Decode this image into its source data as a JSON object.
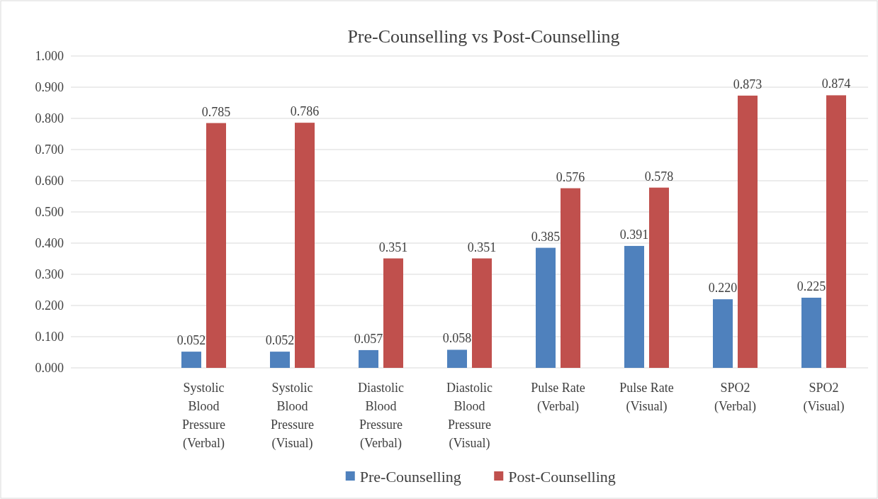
{
  "chart_data": {
    "type": "bar",
    "title": "Pre-Counselling vs Post-Counselling",
    "categories": [
      null,
      "Systolic Blood Pressure (Verbal)",
      "Systolic Blood Pressure (Visual)",
      "Diastolic Blood Pressure (Verbal)",
      "Diastolic Blood Pressure (Visual)",
      "Pulse Rate (Verbal)",
      "Pulse Rate (Visual)",
      "SPO2 (Verbal)",
      "SPO2 (Visual)"
    ],
    "series": [
      {
        "name": "Pre-Counselling",
        "color": "#4f81bd",
        "values": [
          null,
          0.052,
          0.052,
          0.057,
          0.058,
          0.385,
          0.391,
          0.22,
          0.225
        ],
        "value_labels": [
          null,
          "0.052",
          "0.052",
          "0.057",
          "0.058",
          "0.385",
          "0.391",
          "0.220",
          "0.225"
        ]
      },
      {
        "name": "Post-Counselling",
        "color": "#c0504d",
        "values": [
          null,
          0.785,
          0.786,
          0.351,
          0.351,
          0.576,
          0.578,
          0.873,
          0.874
        ],
        "value_labels": [
          null,
          "0.785",
          "0.786",
          "0.351",
          "0.351",
          "0.576",
          "0.578",
          "0.873",
          "0.874"
        ]
      }
    ],
    "ylim": [
      0,
      1
    ],
    "yticks": [
      {
        "value": 0,
        "label": "0.000"
      },
      {
        "value": 0.1,
        "label": "0.100"
      },
      {
        "value": 0.2,
        "label": "0.200"
      },
      {
        "value": 0.3,
        "label": "0.300"
      },
      {
        "value": 0.4,
        "label": "0.400"
      },
      {
        "value": 0.5,
        "label": "0.500"
      },
      {
        "value": 0.6,
        "label": "0.600"
      },
      {
        "value": 0.7,
        "label": "0.700"
      },
      {
        "value": 0.8,
        "label": "0.800"
      },
      {
        "value": 0.9,
        "label": "0.900"
      },
      {
        "value": 1,
        "label": "1.000"
      }
    ],
    "grid": "y",
    "legend": "bottom"
  }
}
